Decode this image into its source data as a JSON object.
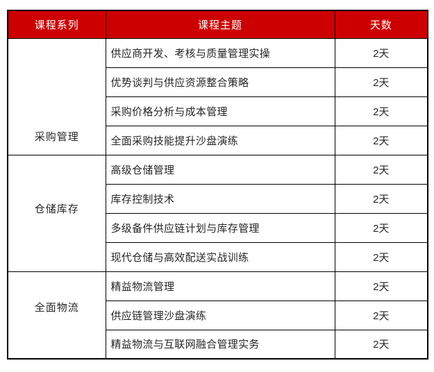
{
  "colors": {
    "header_bg": "#CC0000",
    "header_text": "#FFFFFF",
    "border": "#000000",
    "body_text": "#262626",
    "page_bg": "#FFFFFF"
  },
  "table": {
    "headers": [
      "课程系列",
      "课程主题",
      "天数"
    ],
    "groups": [
      {
        "series": "采购管理",
        "courses": [
          {
            "topic": "供应商开发、考核与质量管理实操",
            "days": "2天"
          },
          {
            "topic": "优势谈判与供应资源整合策略",
            "days": "2天"
          },
          {
            "topic": "采购价格分析与成本管理",
            "days": "2天"
          },
          {
            "topic": "全面采购技能提升沙盘演练",
            "days": "2天"
          }
        ]
      },
      {
        "series": "仓储库存",
        "courses": [
          {
            "topic": "高级仓储管理",
            "days": "2天"
          },
          {
            "topic": "库存控制技术",
            "days": "2天"
          },
          {
            "topic": "多级备件供应链计划与库存管理",
            "days": "2天"
          },
          {
            "topic": "现代仓储与高效配送实战训练",
            "days": "2天"
          }
        ]
      },
      {
        "series": "全面物流",
        "courses": [
          {
            "topic": "精益物流管理",
            "days": "2天"
          },
          {
            "topic": "供应链管理沙盘演练",
            "days": "2天"
          },
          {
            "topic": "精益物流与互联网融合管理实务",
            "days": "2天"
          }
        ]
      }
    ]
  }
}
